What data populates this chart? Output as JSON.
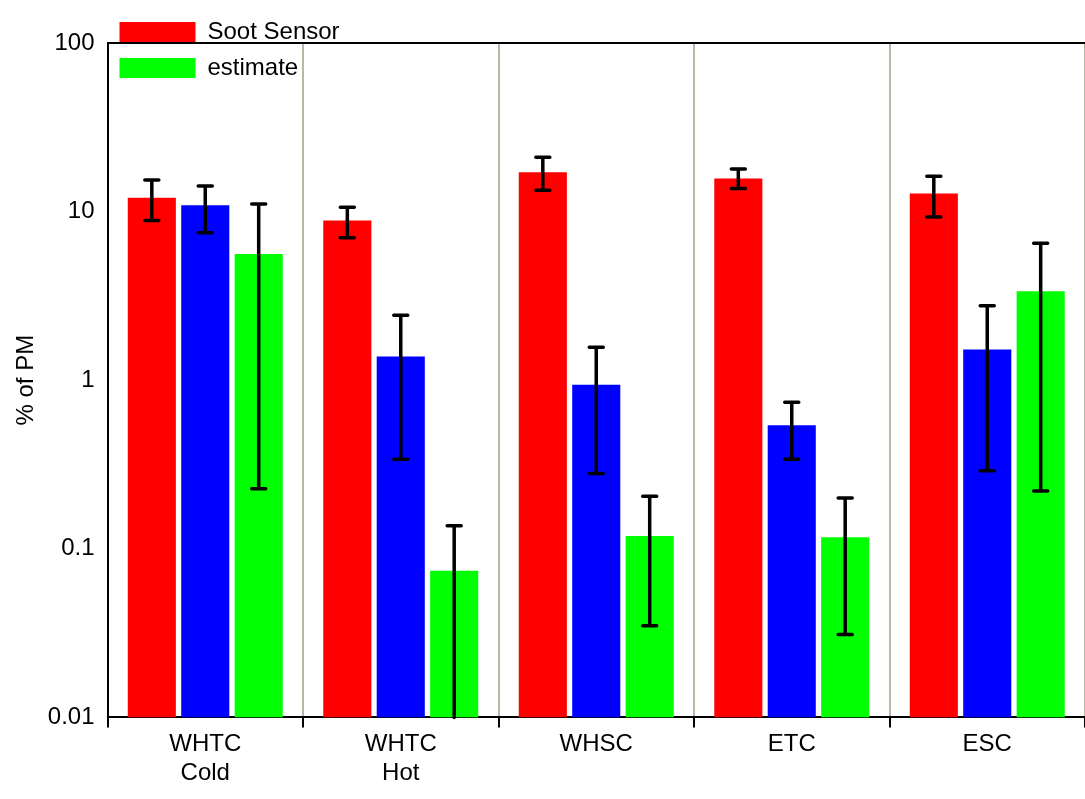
{
  "chart_data": {
    "type": "bar",
    "ylabel": "% of PM",
    "categories": [
      "WHTC Cold",
      "WHTC Hot",
      "WHSC",
      "ETC",
      "ESC"
    ],
    "series": [
      {
        "name": "Soot Sensor",
        "color": "#ff0000",
        "values": [
          12.1,
          8.85,
          17.1,
          15.7,
          12.8
        ],
        "errors": [
          [
            8.85,
            15.4
          ],
          [
            7.0,
            10.6
          ],
          [
            13.4,
            21
          ],
          [
            13.7,
            17.9
          ],
          [
            9.3,
            16.2
          ]
        ]
      },
      {
        "color": "#0000ff",
        "values": [
          10.9,
          1.38,
          0.94,
          0.54,
          1.52
        ],
        "errors": [
          [
            7.5,
            14.2
          ],
          [
            0.34,
            2.43
          ],
          [
            0.28,
            1.57
          ],
          [
            0.34,
            0.74
          ],
          [
            0.29,
            2.76
          ]
        ]
      },
      {
        "name": "estimate",
        "color": "#00ff00",
        "values": [
          5.6,
          0.074,
          0.119,
          0.117,
          3.37
        ],
        "errors": [
          [
            0.227,
            11.1
          ],
          [
            0.01,
            0.137
          ],
          [
            0.035,
            0.205
          ],
          [
            0.031,
            0.2
          ],
          [
            0.22,
            6.5
          ]
        ]
      }
    ],
    "log": "y",
    "ylim": [
      0.01,
      100
    ],
    "yticks": [
      0.01,
      0.1,
      1,
      10,
      100
    ],
    "grid": "x",
    "legend": "top left"
  }
}
